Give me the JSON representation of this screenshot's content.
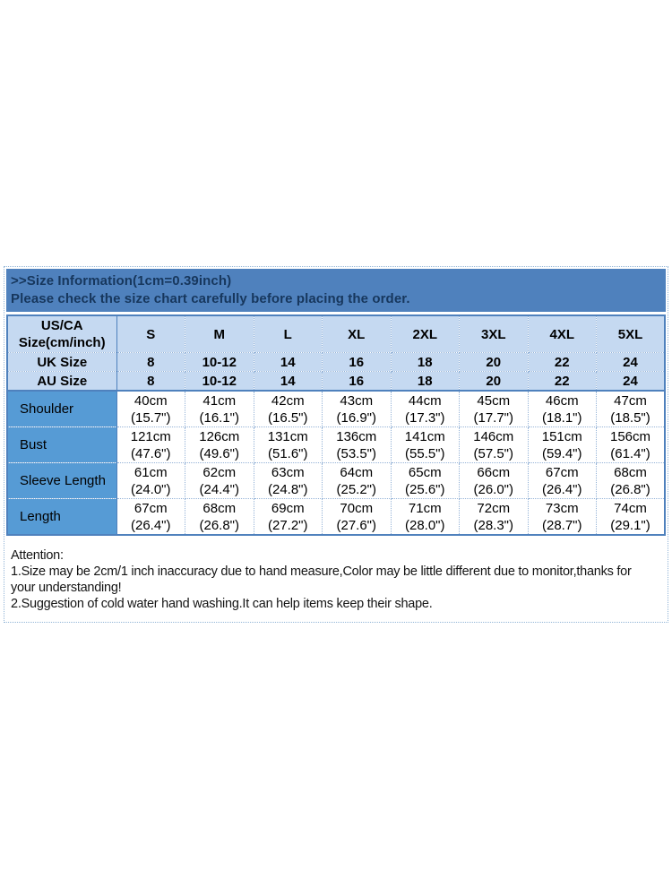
{
  "colors": {
    "band_bg": "#4f81bd",
    "band_text": "#17375d",
    "header_cell_bg": "#c5d9f1",
    "label_cell_bg": "#569bd5",
    "solid_border": "#4f81bd",
    "dotted_border": "#95b3d7",
    "page_bg": "#ffffff",
    "cell_text": "#000000"
  },
  "header": {
    "title": ">>Size Information(1cm=0.39inch)",
    "subtitle": "Please check the size chart carefully before placing the order."
  },
  "size_table": {
    "corner": "US/CA\nSize(cm/inch)",
    "size_columns": [
      "S",
      "M",
      "L",
      "XL",
      "2XL",
      "3XL",
      "4XL",
      "5XL"
    ],
    "conversion_rows": [
      {
        "label": "UK Size",
        "values": [
          "8",
          "10-12",
          "14",
          "16",
          "18",
          "20",
          "22",
          "24"
        ]
      },
      {
        "label": "AU Size",
        "values": [
          "8",
          "10-12",
          "14",
          "16",
          "18",
          "20",
          "22",
          "24"
        ]
      }
    ],
    "measurement_rows": [
      {
        "label": "Shoulder",
        "values": [
          "40cm\n(15.7\")",
          "41cm\n(16.1\")",
          "42cm\n(16.5\")",
          "43cm\n(16.9\")",
          "44cm\n(17.3\")",
          "45cm\n(17.7\")",
          "46cm\n(18.1\")",
          "47cm\n(18.5\")"
        ]
      },
      {
        "label": "Bust",
        "values": [
          "121cm\n(47.6\")",
          "126cm\n(49.6\")",
          "131cm\n(51.6\")",
          "136cm\n(53.5\")",
          "141cm\n(55.5\")",
          "146cm\n(57.5\")",
          "151cm\n(59.4\")",
          "156cm\n(61.4\")"
        ]
      },
      {
        "label": "Sleeve Length",
        "values": [
          "61cm\n(24.0\")",
          "62cm\n(24.4\")",
          "63cm\n(24.8\")",
          "64cm\n(25.2\")",
          "65cm\n(25.6\")",
          "66cm\n(26.0\")",
          "67cm\n(26.4\")",
          "68cm\n(26.8\")"
        ]
      },
      {
        "label": "Length",
        "values": [
          "67cm\n(26.4\")",
          "68cm\n(26.8\")",
          "69cm\n(27.2\")",
          "70cm\n(27.6\")",
          "71cm\n(28.0\")",
          "72cm\n(28.3\")",
          "73cm\n(28.7\")",
          "74cm\n(29.1\")"
        ]
      }
    ]
  },
  "attention": {
    "lines": [
      "Attention:",
      "1.Size may be 2cm/1 inch inaccuracy due to hand measure,Color may be little different due to monitor,thanks for",
      "your understanding!",
      "2.Suggestion of cold water hand washing.It can help items keep their shape."
    ]
  }
}
